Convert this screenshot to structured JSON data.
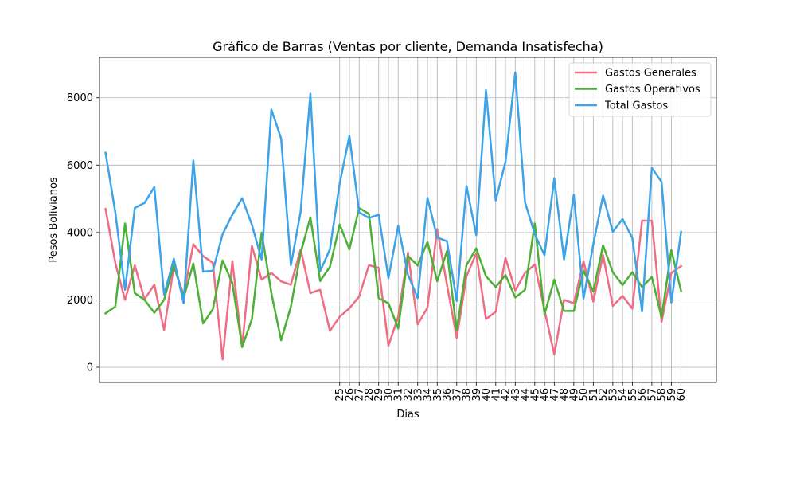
{
  "chart_data": {
    "type": "line",
    "title": "Gráfico de Barras (Ventas por cliente, Demanda Insatisfecha)",
    "xlabel": "Dias",
    "ylabel": "Pesos Bolivianos",
    "ylim": [
      -450,
      9200
    ],
    "yticks": [
      0,
      2000,
      4000,
      6000,
      8000
    ],
    "xlim": [
      -0.62,
      62.62
    ],
    "x_tick_labels": [
      {
        "pos": 24.0,
        "label": "25"
      },
      {
        "pos": 25.0,
        "label": "26"
      },
      {
        "pos": 26.0,
        "label": "27"
      },
      {
        "pos": 27.0,
        "label": "28"
      },
      {
        "pos": 28.0,
        "label": "29"
      },
      {
        "pos": 29.0,
        "label": "30"
      },
      {
        "pos": 30.0,
        "label": "31"
      },
      {
        "pos": 31.0,
        "label": "32"
      },
      {
        "pos": 32.0,
        "label": "33"
      },
      {
        "pos": 33.0,
        "label": "34"
      },
      {
        "pos": 34.0,
        "label": "35"
      },
      {
        "pos": 35.0,
        "label": "36"
      },
      {
        "pos": 36.0,
        "label": "37"
      },
      {
        "pos": 37.0,
        "label": "38"
      },
      {
        "pos": 38.0,
        "label": "39"
      },
      {
        "pos": 39.0,
        "label": "40"
      },
      {
        "pos": 40.0,
        "label": "41"
      },
      {
        "pos": 41.0,
        "label": "42"
      },
      {
        "pos": 42.0,
        "label": "43"
      },
      {
        "pos": 43.0,
        "label": "44"
      },
      {
        "pos": 44.0,
        "label": "45"
      },
      {
        "pos": 45.0,
        "label": "46"
      },
      {
        "pos": 46.0,
        "label": "47"
      },
      {
        "pos": 47.0,
        "label": "48"
      },
      {
        "pos": 48.0,
        "label": "49"
      },
      {
        "pos": 49.0,
        "label": "50"
      },
      {
        "pos": 50.0,
        "label": "51"
      },
      {
        "pos": 51.0,
        "label": "52"
      },
      {
        "pos": 52.0,
        "label": "53"
      },
      {
        "pos": 53.0,
        "label": "54"
      },
      {
        "pos": 54.0,
        "label": "55"
      },
      {
        "pos": 55.0,
        "label": "56"
      },
      {
        "pos": 56.0,
        "label": "57"
      },
      {
        "pos": 57.0,
        "label": "58"
      },
      {
        "pos": 58.0,
        "label": "59"
      },
      {
        "pos": 59.0,
        "label": "60"
      }
    ],
    "x": [
      0,
      1,
      2,
      3,
      4,
      5,
      6,
      7,
      8,
      9,
      10,
      11,
      12,
      13,
      14,
      15,
      16,
      17,
      18,
      19,
      20,
      21,
      22,
      23,
      24,
      25,
      26,
      27,
      28,
      29,
      30,
      31,
      32,
      33,
      34,
      35,
      36,
      37,
      38,
      39,
      40,
      41,
      42,
      43,
      44,
      45,
      46,
      47,
      48,
      49,
      50,
      51,
      52,
      53,
      54,
      55,
      56,
      57,
      58,
      59
    ],
    "grid": "y-all, x-labeled",
    "legend_position": "upper right",
    "series": [
      {
        "name": "Gastos Generales",
        "color": "#ee6d85",
        "values": [
          4700,
          3100,
          2000,
          3020,
          2020,
          2450,
          1100,
          3000,
          2150,
          3650,
          3300,
          3100,
          230,
          3150,
          600,
          3600,
          2600,
          2800,
          2550,
          2450,
          3500,
          2200,
          2300,
          1080,
          1500,
          1750,
          2100,
          3030,
          2950,
          640,
          1500,
          3400,
          1270,
          1770,
          4100,
          2450,
          870,
          2700,
          3380,
          1430,
          1650,
          3250,
          2280,
          2800,
          3050,
          1700,
          380,
          2000,
          1900,
          3150,
          1950,
          3330,
          1820,
          2120,
          1740,
          4350,
          4350,
          1350,
          2800,
          3000
        ]
      },
      {
        "name": "Gastos Operativos",
        "color": "#4daf35",
        "values": [
          1600,
          1800,
          4270,
          2200,
          2000,
          1620,
          2000,
          3050,
          2050,
          3080,
          1300,
          1720,
          3170,
          2500,
          600,
          1420,
          4000,
          2200,
          800,
          1800,
          3400,
          4450,
          2560,
          2980,
          4240,
          3500,
          4730,
          4550,
          2050,
          1900,
          1150,
          3300,
          3020,
          3720,
          2550,
          3450,
          1090,
          3030,
          3530,
          2700,
          2380,
          2740,
          2070,
          2300,
          4270,
          1570,
          2600,
          1670,
          1670,
          2870,
          2250,
          3620,
          2820,
          2440,
          2820,
          2380,
          2680,
          1480,
          3480,
          2260
        ]
      },
      {
        "name": "Total Gastos",
        "color": "#3ba3e6",
        "values": [
          6370,
          4600,
          2300,
          4730,
          4880,
          5350,
          2150,
          3220,
          1900,
          6140,
          2840,
          2860,
          3950,
          4530,
          5020,
          4230,
          3200,
          7650,
          6790,
          3030,
          4620,
          8120,
          2850,
          3500,
          5450,
          6870,
          4600,
          4430,
          4530,
          2640,
          4200,
          2750,
          2050,
          5030,
          3850,
          3740,
          1970,
          5380,
          3920,
          8230,
          4950,
          6100,
          8750,
          4900,
          3950,
          3330,
          5610,
          3200,
          5120,
          2040,
          3650,
          5100,
          4020,
          4400,
          3840,
          1660,
          5920,
          5500,
          1920,
          4020
        ]
      }
    ]
  }
}
